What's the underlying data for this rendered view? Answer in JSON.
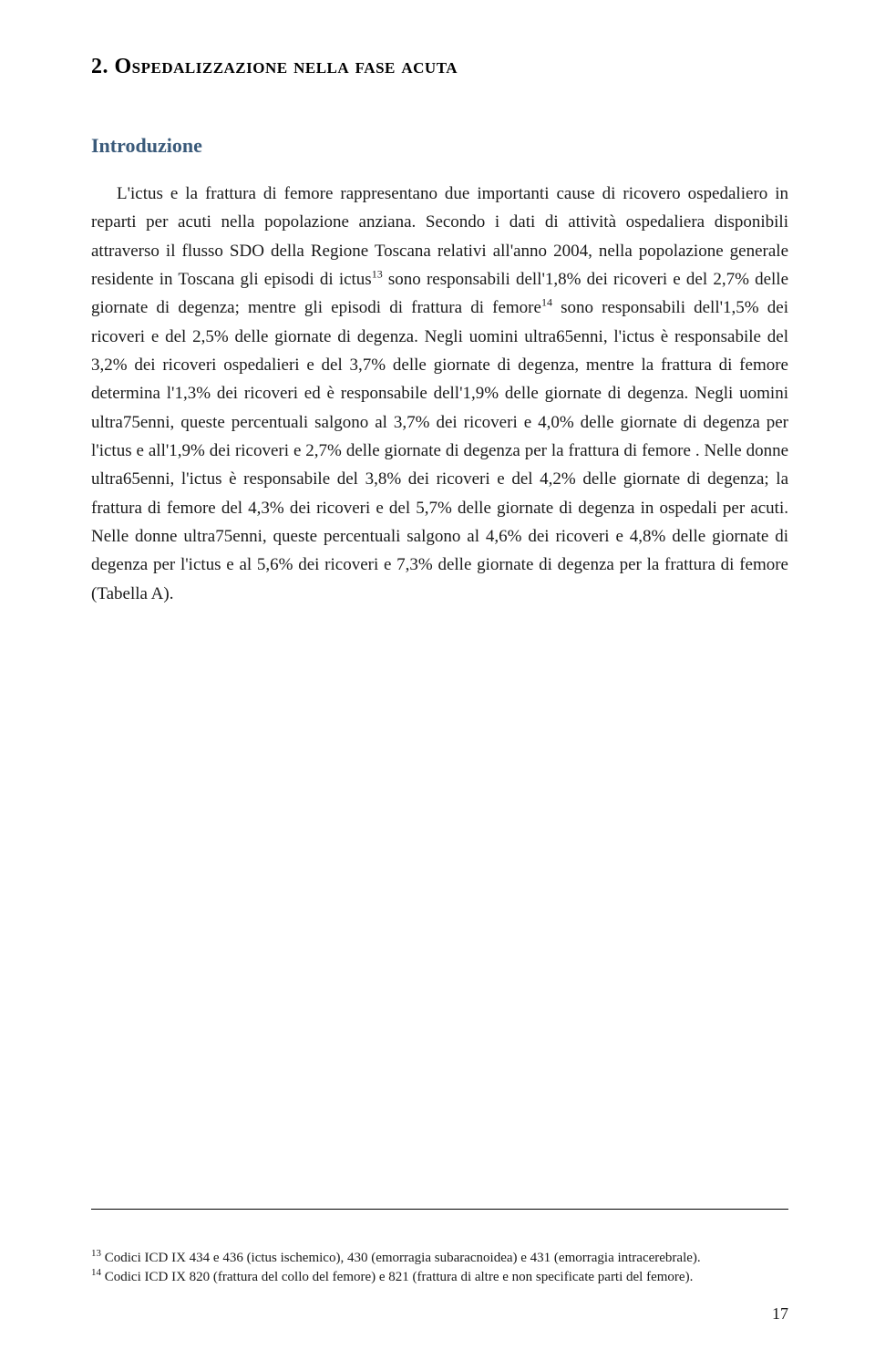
{
  "chapter": {
    "title": "2. Ospedalizzazione nella fase acuta"
  },
  "sections": {
    "intro": {
      "heading": "Introduzione",
      "paragraph_html": "L'ictus e la frattura di femore rappresentano due importanti cause di ricovero ospedaliero in reparti per acuti nella popolazione anziana. Secondo i dati di attività ospedaliera disponibili attraverso il flusso SDO della Regione Toscana relativi all'anno 2004, nella popolazione generale residente in Toscana gli episodi di ictus<sup>13</sup> sono responsabili dell'1,8% dei ricoveri e del 2,7% delle giornate di degenza; mentre gli episodi di frattura di femore<sup>14</sup> sono responsabili dell'1,5% dei ricoveri e del 2,5% delle giornate di degenza. Negli uomini ultra65enni, l'ictus è responsabile del 3,2% dei ricoveri ospedalieri e del 3,7% delle giornate di degenza, mentre la frattura di femore determina l'1,3% dei ricoveri ed è responsabile dell'1,9% delle giornate di degenza. Negli uomini ultra75enni, queste percentuali salgono al 3,7% dei ricoveri e 4,0% delle giornate di degenza per l'ictus e all'1,9% dei ricoveri e 2,7% delle giornate di degenza per la frattura di femore . Nelle donne ultra65enni, l'ictus è responsabile del 3,8% dei ricoveri e del 4,2% delle giornate di degenza; la frattura di femore del 4,3% dei ricoveri e del 5,7% delle giornate di degenza in ospedali per acuti. Nelle donne ultra75enni, queste percentuali salgono al 4,6% dei ricoveri e 4,8% delle giornate di degenza per l'ictus e al 5,6% dei ricoveri e 7,3% delle giornate di degenza per la frattura di femore (Tabella A)."
    }
  },
  "footnotes": [
    {
      "number": "13",
      "text_html": "Codici ICD IX 434 e 436 (ictus ischemico), 430 (emorragia subaracnoidea) e 431 (emorragia intracerebrale)."
    },
    {
      "number": "14",
      "text_html": "Codici ICD IX 820 (frattura del collo del femore) e 821 (frattura di altre e non specificate parti del femore)."
    }
  ],
  "page_number": "17",
  "colors": {
    "text": "#1a1a1a",
    "heading": "#3a5a7a",
    "background": "#ffffff"
  },
  "typography": {
    "body_fontsize": 19,
    "title_fontsize": 24,
    "heading_fontsize": 22,
    "footnote_fontsize": 15,
    "line_height": 1.65
  }
}
